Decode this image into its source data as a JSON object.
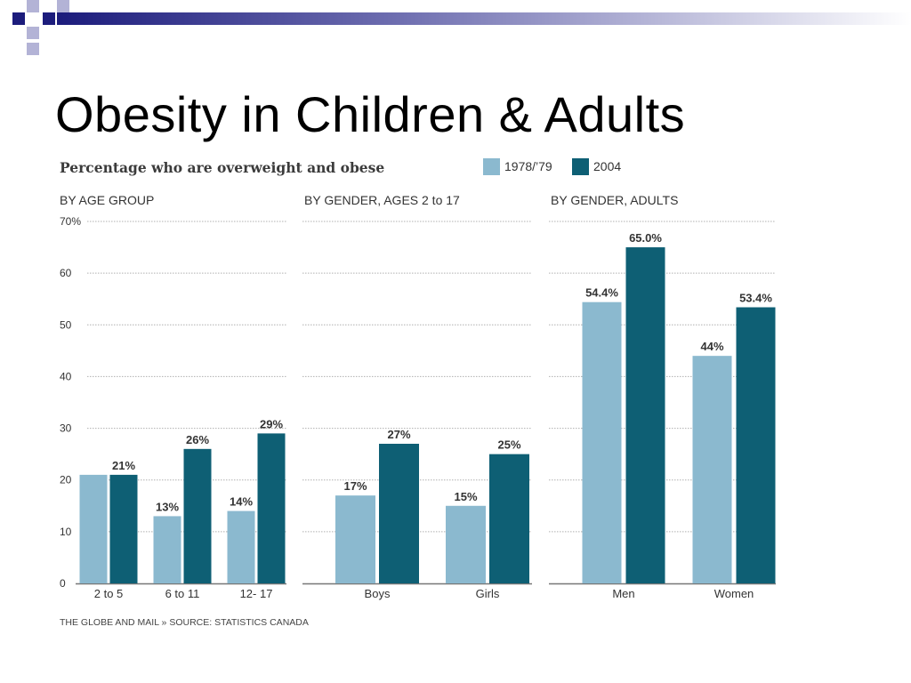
{
  "slide": {
    "title": "Obesity in Children & Adults"
  },
  "colors": {
    "series_1978": "#8bb9cf",
    "series_2004": "#0e5f74",
    "decor_dark": "#1c1c7c",
    "decor_light": "#b3b3d6",
    "grid": "#b0b0b0",
    "axis": "#777777"
  },
  "chart_data": {
    "type": "bar",
    "title": "Percentage who are overweight and obese",
    "legend": {
      "placement": "top-right",
      "entries": [
        "1978/’79",
        "2004"
      ]
    },
    "ylim": [
      0,
      70
    ],
    "yticks": [
      0,
      10,
      20,
      30,
      40,
      50,
      60,
      70
    ],
    "ytick_labels": [
      "0",
      "10",
      "20",
      "30",
      "40",
      "50",
      "60",
      "70%"
    ],
    "grid": true,
    "panels": [
      {
        "title": "BY AGE GROUP",
        "categories": [
          "2 to 5",
          "6 to 11",
          "12- 17"
        ],
        "series": [
          {
            "name": "1978/’79",
            "values": [
              21,
              13,
              14
            ],
            "labels": [
              "",
              "13%",
              "14%"
            ]
          },
          {
            "name": "2004",
            "values": [
              21,
              26,
              29
            ],
            "labels": [
              "21%",
              "26%",
              "29%"
            ]
          }
        ]
      },
      {
        "title": "BY GENDER, AGES 2 to 17",
        "categories": [
          "Boys",
          "Girls"
        ],
        "series": [
          {
            "name": "1978/’79",
            "values": [
              17,
              15
            ],
            "labels": [
              "17%",
              "15%"
            ]
          },
          {
            "name": "2004",
            "values": [
              27,
              25
            ],
            "labels": [
              "27%",
              "25%"
            ]
          }
        ]
      },
      {
        "title": "BY GENDER, ADULTS",
        "categories": [
          "Men",
          "Women"
        ],
        "series": [
          {
            "name": "1978/’79",
            "values": [
              54.4,
              44
            ],
            "labels": [
              "54.4%",
              "44%"
            ]
          },
          {
            "name": "2004",
            "values": [
              65.0,
              53.4
            ],
            "labels": [
              "65.0%",
              "53.4%"
            ]
          }
        ]
      }
    ],
    "source": "THE GLOBE AND MAIL » SOURCE: STATISTICS CANADA"
  }
}
